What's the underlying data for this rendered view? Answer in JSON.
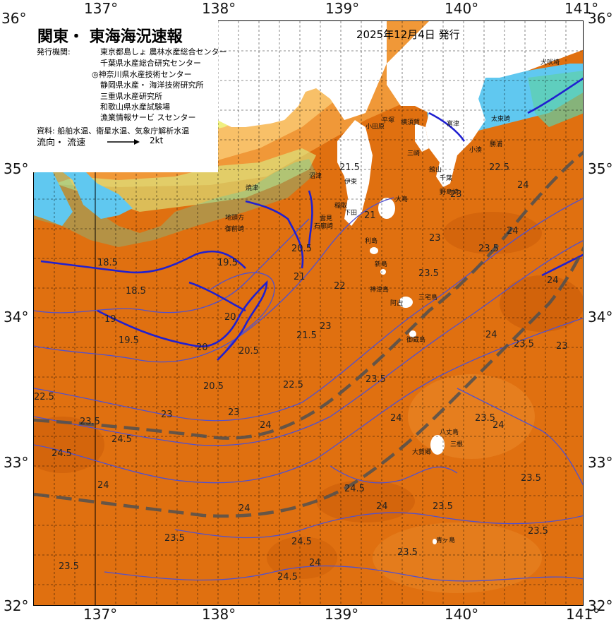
{
  "map": {
    "title": "関東・ 東海海況速報",
    "issue_date": "2025年12月4日 発行",
    "orgs_label": "発行機関:",
    "orgs": [
      "東京都島しょ 農林水産総合センター",
      "千葉県水産総合研究センター",
      "◎神奈川県水産技術センター",
      "静岡県水産・ 海洋技術研究所",
      "三重県水産研究所",
      "和歌山県水産試験場",
      "漁業情報サービ スセンター"
    ],
    "sources": "資料: 船舶水温、衛星水温、気象庁解析水温",
    "flow_label": "流向・ 流速",
    "flow_scale": "2kt",
    "lon_labels": [
      "137°",
      "138°",
      "139°",
      "140°",
      "141°"
    ],
    "lat_labels": [
      "36°",
      "35°",
      "34°",
      "33°",
      "32°"
    ],
    "colors": {
      "warm_dark": "#c85a08",
      "warm": "#e07010",
      "warm_light": "#f09838",
      "mid": "#f8c068",
      "yellow": "#f0f080",
      "green": "#a8e070",
      "teal": "#60d0a8",
      "cyan": "#60c8f0",
      "isotherm": "#3030c0",
      "kuroshio": "#505050",
      "land": "#ffffff"
    },
    "places": [
      "犬吠埼",
      "太東崎",
      "勝浦",
      "小湊",
      "千葉",
      "富津",
      "横須賀",
      "平塚",
      "小田原",
      "三崎",
      "館山",
      "野島崎",
      "大島",
      "稲取",
      "下田",
      "伊東",
      "沼津",
      "焼津",
      "地頭方",
      "御前崎",
      "雲見",
      "石廊崎",
      "利島",
      "新島",
      "神津島",
      "三宅島",
      "阿古",
      "御蔵島",
      "八丈島",
      "三根",
      "大賀郷",
      "青ヶ島"
    ],
    "isotherm_labels": [
      "22.5",
      "24",
      "23",
      "24",
      "24",
      "23.5",
      "23",
      "23.5",
      "24",
      "23",
      "23.5",
      "21",
      "21.5",
      "20.5",
      "20",
      "19.5",
      "18.5",
      "18.5",
      "19",
      "19.5",
      "20.5",
      "20",
      "20.5",
      "21",
      "21.5",
      "22",
      "22.5",
      "23",
      "23.5",
      "24",
      "24.5",
      "24",
      "24.5",
      "24",
      "23.5",
      "23.5",
      "24",
      "23.5",
      "23",
      "22.5",
      "23.5",
      "24.5",
      "24",
      "23",
      "23.5",
      "23.5",
      "23.5",
      "24",
      "24.5",
      "24.5",
      "23.5",
      "24"
    ]
  }
}
